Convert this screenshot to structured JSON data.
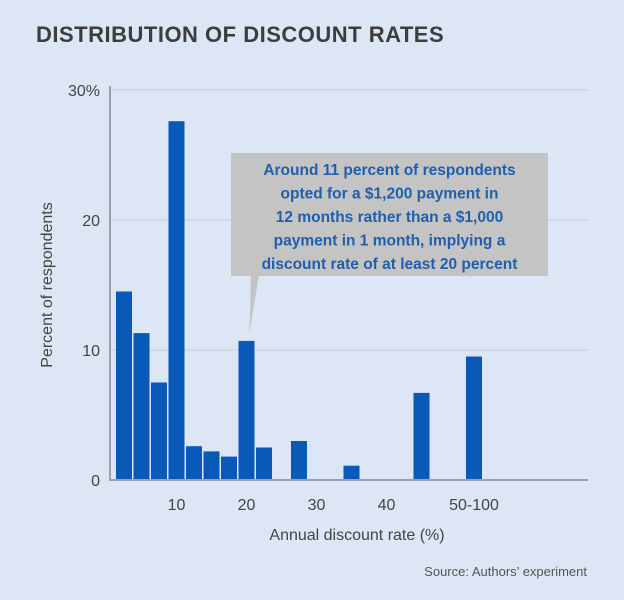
{
  "chart_data": {
    "type": "bar",
    "title": "DISTRIBUTION OF DISCOUNT RATES",
    "xlabel": "Annual discount rate (%)",
    "ylabel": "Percent of respondents",
    "ylim": [
      0,
      30
    ],
    "grid": true,
    "y_ticks": [
      {
        "value": 0,
        "label": "0"
      },
      {
        "value": 10,
        "label": "10"
      },
      {
        "value": 20,
        "label": "20"
      },
      {
        "value": 30,
        "label": "30%"
      }
    ],
    "x_ticks": [
      {
        "bin": 3,
        "label": "10"
      },
      {
        "bin": 7,
        "label": "20"
      },
      {
        "bin": 11,
        "label": "30"
      },
      {
        "bin": 15,
        "label": "40"
      },
      {
        "bin": 20,
        "label": "50-100"
      }
    ],
    "bins_total": 26,
    "bars": [
      {
        "bin": 0,
        "value": 14.5
      },
      {
        "bin": 1,
        "value": 11.3
      },
      {
        "bin": 2,
        "value": 7.5
      },
      {
        "bin": 3,
        "value": 27.6
      },
      {
        "bin": 4,
        "value": 2.6
      },
      {
        "bin": 5,
        "value": 2.2
      },
      {
        "bin": 6,
        "value": 1.8
      },
      {
        "bin": 7,
        "value": 10.7
      },
      {
        "bin": 8,
        "value": 2.5
      },
      {
        "bin": 10,
        "value": 3.0
      },
      {
        "bin": 13,
        "value": 1.1
      },
      {
        "bin": 17,
        "value": 6.7
      },
      {
        "bin": 20,
        "value": 9.5
      }
    ],
    "bar_color": "#0a58b8",
    "annotation": {
      "target_bin": 7,
      "lines": [
        "Around 11 percent of respondents",
        "opted for a $1,200 payment in",
        "12 months rather than a $1,000",
        "payment in 1 month, implying a",
        "discount rate of at least 20 percent"
      ]
    },
    "source": "Source: Authors’ experiment"
  }
}
